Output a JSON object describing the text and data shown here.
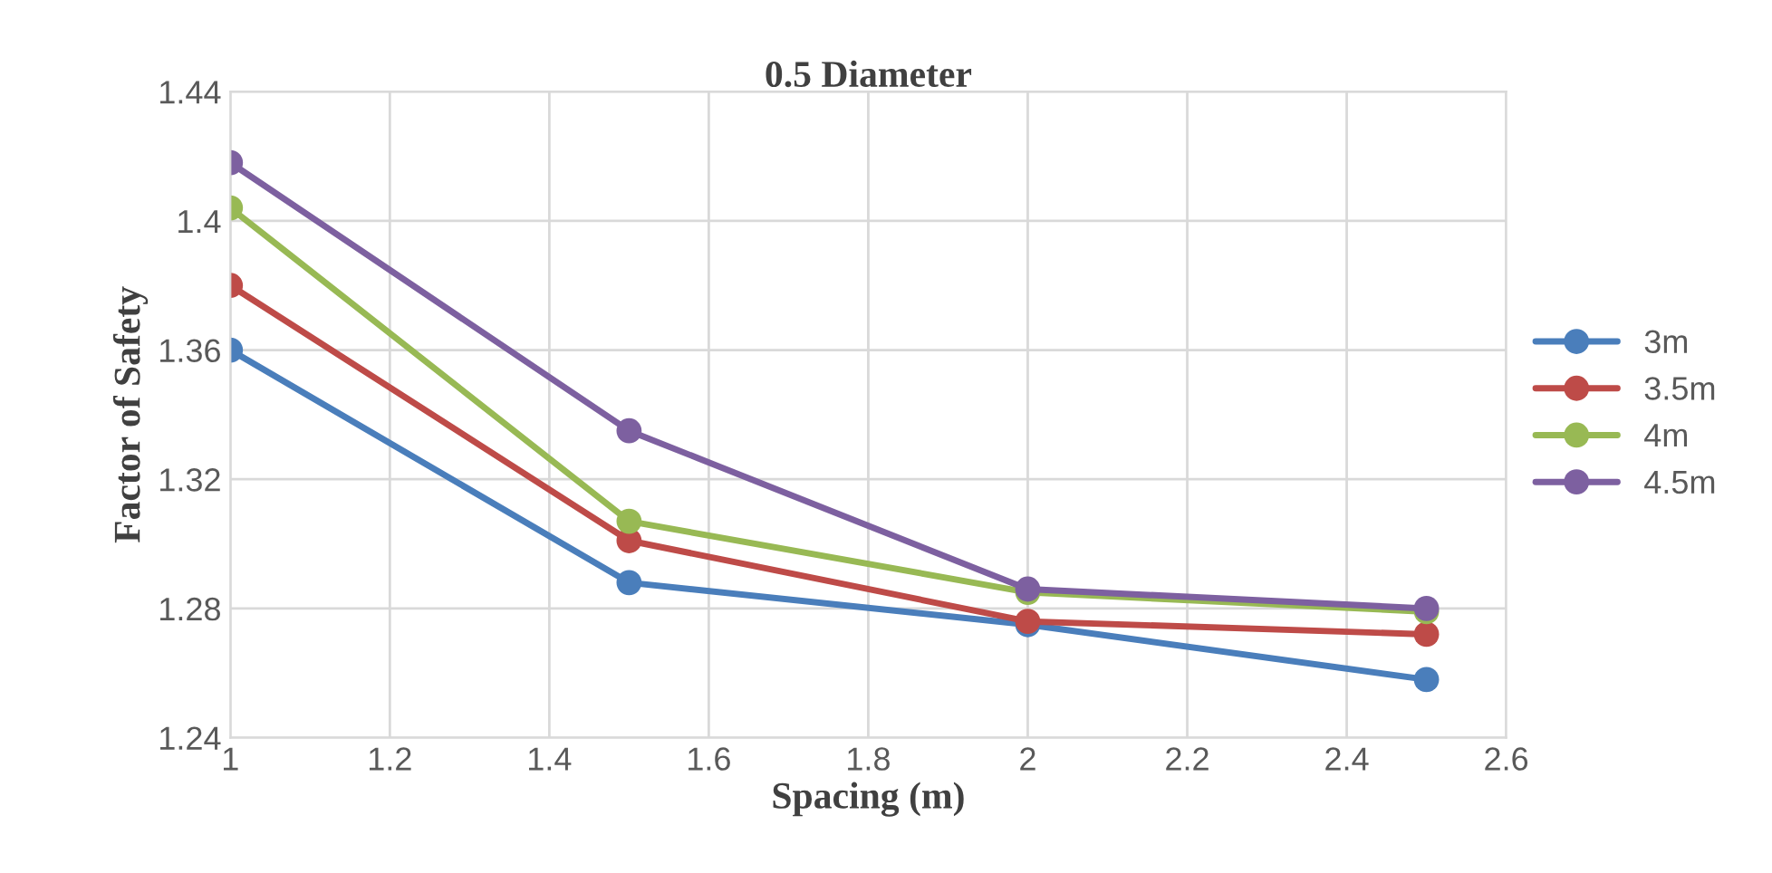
{
  "chart_data": {
    "type": "line",
    "title": "0.5 Diameter",
    "xlabel": "Spacing (m)",
    "ylabel": "Factor of Safety",
    "x": [
      1,
      1.5,
      2,
      2.5
    ],
    "series": [
      {
        "name": "3m",
        "color": "#4a7ebb",
        "values": [
          1.36,
          1.288,
          1.275,
          1.258
        ]
      },
      {
        "name": "3.5m",
        "color": "#be4b48",
        "values": [
          1.38,
          1.301,
          1.276,
          1.272
        ]
      },
      {
        "name": "4m",
        "color": "#98b954",
        "values": [
          1.404,
          1.307,
          1.285,
          1.279
        ]
      },
      {
        "name": "4.5m",
        "color": "#7d60a0",
        "values": [
          1.418,
          1.335,
          1.286,
          1.28
        ]
      }
    ],
    "xlim": [
      1,
      2.6
    ],
    "xticks": [
      1,
      1.2,
      1.4,
      1.6,
      1.8,
      2,
      2.2,
      2.4,
      2.6
    ],
    "ylim": [
      1.24,
      1.44
    ],
    "yticks": [
      1.24,
      1.28,
      1.32,
      1.36,
      1.4,
      1.44
    ],
    "grid": true,
    "legend": "right",
    "marker": "circle",
    "line_style": "solid"
  }
}
